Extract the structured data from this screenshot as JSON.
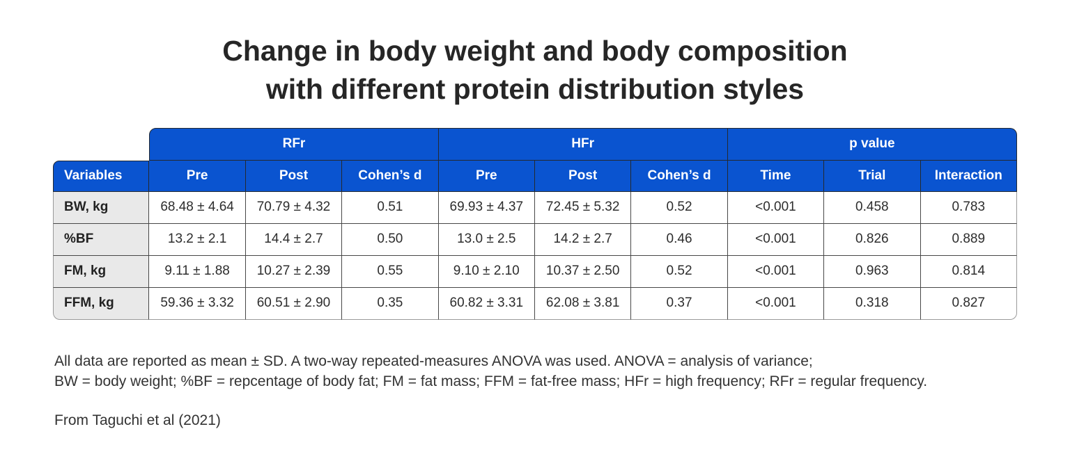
{
  "title": {
    "line1": "Change in body weight and body composition",
    "line2": "with different protein distribution styles"
  },
  "colors": {
    "header_blue": "#0a54d0",
    "variable_column_bg": "#e9e9e9",
    "inner_border": "#474747",
    "outer_border": "#9a9a9a",
    "title_text": "#262626"
  },
  "table": {
    "groups": [
      {
        "label": "RFr",
        "span": 3
      },
      {
        "label": "HFr",
        "span": 3
      },
      {
        "label": "p value",
        "span": 3
      }
    ],
    "columns": [
      "Variables",
      "Pre",
      "Post",
      "Cohen’s d",
      "Pre",
      "Post",
      "Cohen’s d",
      "Time",
      "Trial",
      "Interaction"
    ],
    "rows": [
      {
        "variable": "BW, kg",
        "values": [
          "68.48 ± 4.64",
          "70.79 ± 4.32",
          "0.51",
          "69.93 ± 4.37",
          "72.45 ± 5.32",
          "0.52",
          "<0.001",
          "0.458",
          "0.783"
        ]
      },
      {
        "variable": "%BF",
        "values": [
          "13.2 ± 2.1",
          "14.4 ± 2.7",
          "0.50",
          "13.0 ± 2.5",
          "14.2 ± 2.7",
          "0.46",
          "<0.001",
          "0.826",
          "0.889"
        ]
      },
      {
        "variable": "FM, kg",
        "values": [
          "9.11 ± 1.88",
          "10.27 ± 2.39",
          "0.55",
          "9.10 ± 2.10",
          "10.37 ± 2.50",
          "0.52",
          "<0.001",
          "0.963",
          "0.814"
        ]
      },
      {
        "variable": "FFM, kg",
        "values": [
          "59.36 ± 3.32",
          "60.51 ± 2.90",
          "0.35",
          "60.82 ± 3.31",
          "62.08 ± 3.81",
          "0.37",
          "<0.001",
          "0.318",
          "0.827"
        ]
      }
    ]
  },
  "footnotes": {
    "line1": "All data are reported as mean ± SD. A two-way repeated-measures ANOVA was used. ANOVA = analysis of variance;",
    "line2": "BW = body weight; %BF = repcentage of body fat; FM = fat mass; FFM = fat-free mass; HFr = high frequency; RFr = regular frequency.",
    "source": "From Taguchi et al (2021)"
  },
  "chart_data": {
    "type": "table",
    "title": "Change in body weight and body composition with different protein distribution styles",
    "column_groups": [
      {
        "label": "",
        "span": 1
      },
      {
        "label": "RFr",
        "span": 3
      },
      {
        "label": "HFr",
        "span": 3
      },
      {
        "label": "p value",
        "span": 3
      }
    ],
    "columns": [
      "Variables",
      "Pre",
      "Post",
      "Cohen’s d",
      "Pre",
      "Post",
      "Cohen’s d",
      "Time",
      "Trial",
      "Interaction"
    ],
    "rows": [
      [
        "BW, kg",
        "68.48 ± 4.64",
        "70.79 ± 4.32",
        "0.51",
        "69.93 ± 4.37",
        "72.45 ± 5.32",
        "0.52",
        "<0.001",
        "0.458",
        "0.783"
      ],
      [
        "%BF",
        "13.2 ± 2.1",
        "14.4 ± 2.7",
        "0.50",
        "13.0 ± 2.5",
        "14.2 ± 2.7",
        "0.46",
        "<0.001",
        "0.826",
        "0.889"
      ],
      [
        "FM, kg",
        "9.11 ± 1.88",
        "10.27 ± 2.39",
        "0.55",
        "9.10 ± 2.10",
        "10.37 ± 2.50",
        "0.52",
        "<0.001",
        "0.963",
        "0.814"
      ],
      [
        "FFM, kg",
        "59.36 ± 3.32",
        "60.51 ± 2.90",
        "0.35",
        "60.82 ± 3.31",
        "62.08 ± 3.81",
        "0.37",
        "<0.001",
        "0.318",
        "0.827"
      ]
    ],
    "notes": "All data are reported as mean ± SD. Two-way repeated-measures ANOVA.",
    "source": "From Taguchi et al (2021)"
  }
}
